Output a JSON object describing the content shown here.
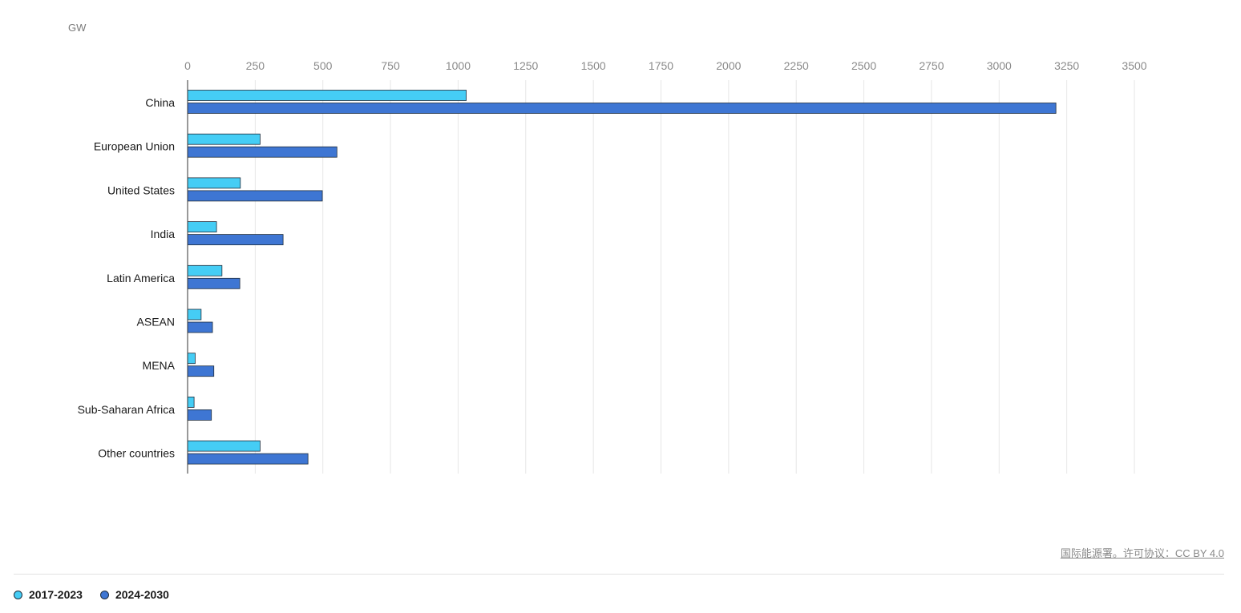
{
  "chart_data": {
    "type": "bar",
    "orientation": "horizontal",
    "unit": "GW",
    "categories": [
      "China",
      "European Union",
      "United States",
      "India",
      "Latin America",
      "ASEAN",
      "MENA",
      "Sub-Saharan Africa",
      "Other countries"
    ],
    "series": [
      {
        "name": "2017-2023",
        "color": "#45cdf5",
        "values": [
          1030,
          268,
          195,
          107,
          127,
          50,
          28,
          24,
          268
        ]
      },
      {
        "name": "2024-2030",
        "color": "#3e76d3",
        "values": [
          3210,
          552,
          498,
          353,
          193,
          92,
          97,
          88,
          445
        ]
      }
    ],
    "xlim": [
      0,
      3500
    ],
    "xticks": [
      "0",
      "250",
      "500",
      "750",
      "1000",
      "1250",
      "1500",
      "1750",
      "2000",
      "2250",
      "2500",
      "2750",
      "3000",
      "3250",
      "3500"
    ],
    "grid": true,
    "legend_position": "bottom-left"
  },
  "source": "国际能源署。许可协议：CC BY 4.0"
}
